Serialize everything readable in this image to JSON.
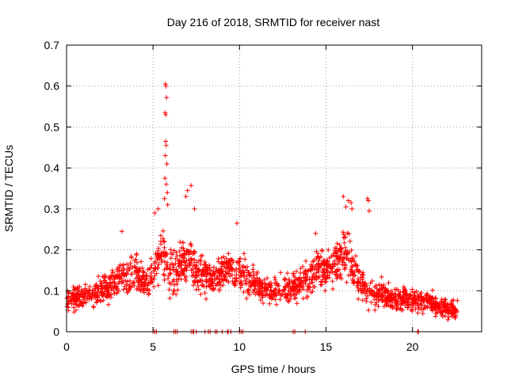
{
  "chart_data": {
    "type": "scatter",
    "title": "Day 216 of 2018, SRMTID for receiver nast",
    "xlabel": "GPS time / hours",
    "ylabel": "SRMTID / TECUs",
    "xlim": [
      0,
      24
    ],
    "ylim": [
      0,
      0.7
    ],
    "xticks": [
      0,
      5,
      10,
      15,
      20
    ],
    "yticks": [
      0,
      0.1,
      0.2,
      0.3,
      0.4,
      0.5,
      0.6,
      0.7
    ],
    "xtick_labels": [
      "0",
      "5",
      "10",
      "15",
      "20"
    ],
    "ytick_labels": [
      "0",
      "0.1",
      "0.2",
      "0.3",
      "0.4",
      "0.5",
      "0.6",
      "0.7"
    ],
    "grid": true,
    "marker": "+",
    "series": [
      {
        "name": "SRMTID",
        "color": "#ff0000",
        "profile": [
          [
            0.0,
            0.075,
            0.035
          ],
          [
            1.0,
            0.085,
            0.035
          ],
          [
            2.0,
            0.1,
            0.04
          ],
          [
            3.0,
            0.13,
            0.05
          ],
          [
            3.8,
            0.15,
            0.06
          ],
          [
            4.5,
            0.12,
            0.05
          ],
          [
            5.0,
            0.14,
            0.06
          ],
          [
            5.5,
            0.2,
            0.08
          ],
          [
            6.0,
            0.13,
            0.08
          ],
          [
            6.5,
            0.16,
            0.07
          ],
          [
            7.0,
            0.18,
            0.08
          ],
          [
            7.5,
            0.15,
            0.06
          ],
          [
            8.5,
            0.13,
            0.05
          ],
          [
            9.5,
            0.16,
            0.06
          ],
          [
            10.5,
            0.13,
            0.05
          ],
          [
            11.5,
            0.1,
            0.04
          ],
          [
            12.5,
            0.1,
            0.04
          ],
          [
            13.5,
            0.12,
            0.05
          ],
          [
            14.5,
            0.15,
            0.06
          ],
          [
            15.5,
            0.16,
            0.06
          ],
          [
            16.2,
            0.2,
            0.08
          ],
          [
            17.0,
            0.11,
            0.05
          ],
          [
            18.0,
            0.09,
            0.04
          ],
          [
            19.0,
            0.08,
            0.035
          ],
          [
            20.0,
            0.08,
            0.035
          ],
          [
            21.0,
            0.07,
            0.035
          ],
          [
            22.0,
            0.055,
            0.03
          ],
          [
            22.6,
            0.06,
            0.03
          ]
        ],
        "n_points": 1800,
        "peaks": [
          [
            5.72,
            0.605
          ],
          [
            5.75,
            0.6
          ],
          [
            5.78,
            0.572
          ],
          [
            5.7,
            0.535
          ],
          [
            5.74,
            0.53
          ],
          [
            5.73,
            0.465
          ],
          [
            5.76,
            0.455
          ],
          [
            5.71,
            0.43
          ],
          [
            5.8,
            0.41
          ],
          [
            5.69,
            0.375
          ],
          [
            5.77,
            0.36
          ],
          [
            5.82,
            0.34
          ],
          [
            5.66,
            0.325
          ],
          [
            5.85,
            0.31
          ],
          [
            7.2,
            0.357
          ],
          [
            7.0,
            0.345
          ],
          [
            6.9,
            0.33
          ],
          [
            7.4,
            0.3
          ],
          [
            16.0,
            0.33
          ],
          [
            16.3,
            0.32
          ],
          [
            16.15,
            0.305
          ],
          [
            16.45,
            0.315
          ],
          [
            16.5,
            0.3
          ],
          [
            17.4,
            0.325
          ],
          [
            17.45,
            0.32
          ],
          [
            17.5,
            0.295
          ],
          [
            9.85,
            0.265
          ],
          [
            3.2,
            0.245
          ],
          [
            14.4,
            0.24
          ],
          [
            5.3,
            0.3
          ],
          [
            5.1,
            0.29
          ]
        ],
        "zeros": [
          5.0,
          5.1,
          5.2,
          6.2,
          6.3,
          6.4,
          7.2,
          7.3,
          7.35,
          7.5,
          8.0,
          8.2,
          8.3,
          8.6,
          8.7,
          9.0,
          9.3,
          9.35,
          9.5,
          10.0,
          10.1,
          10.2,
          13.1,
          13.2,
          13.8,
          20.3,
          20.35
        ]
      }
    ]
  }
}
